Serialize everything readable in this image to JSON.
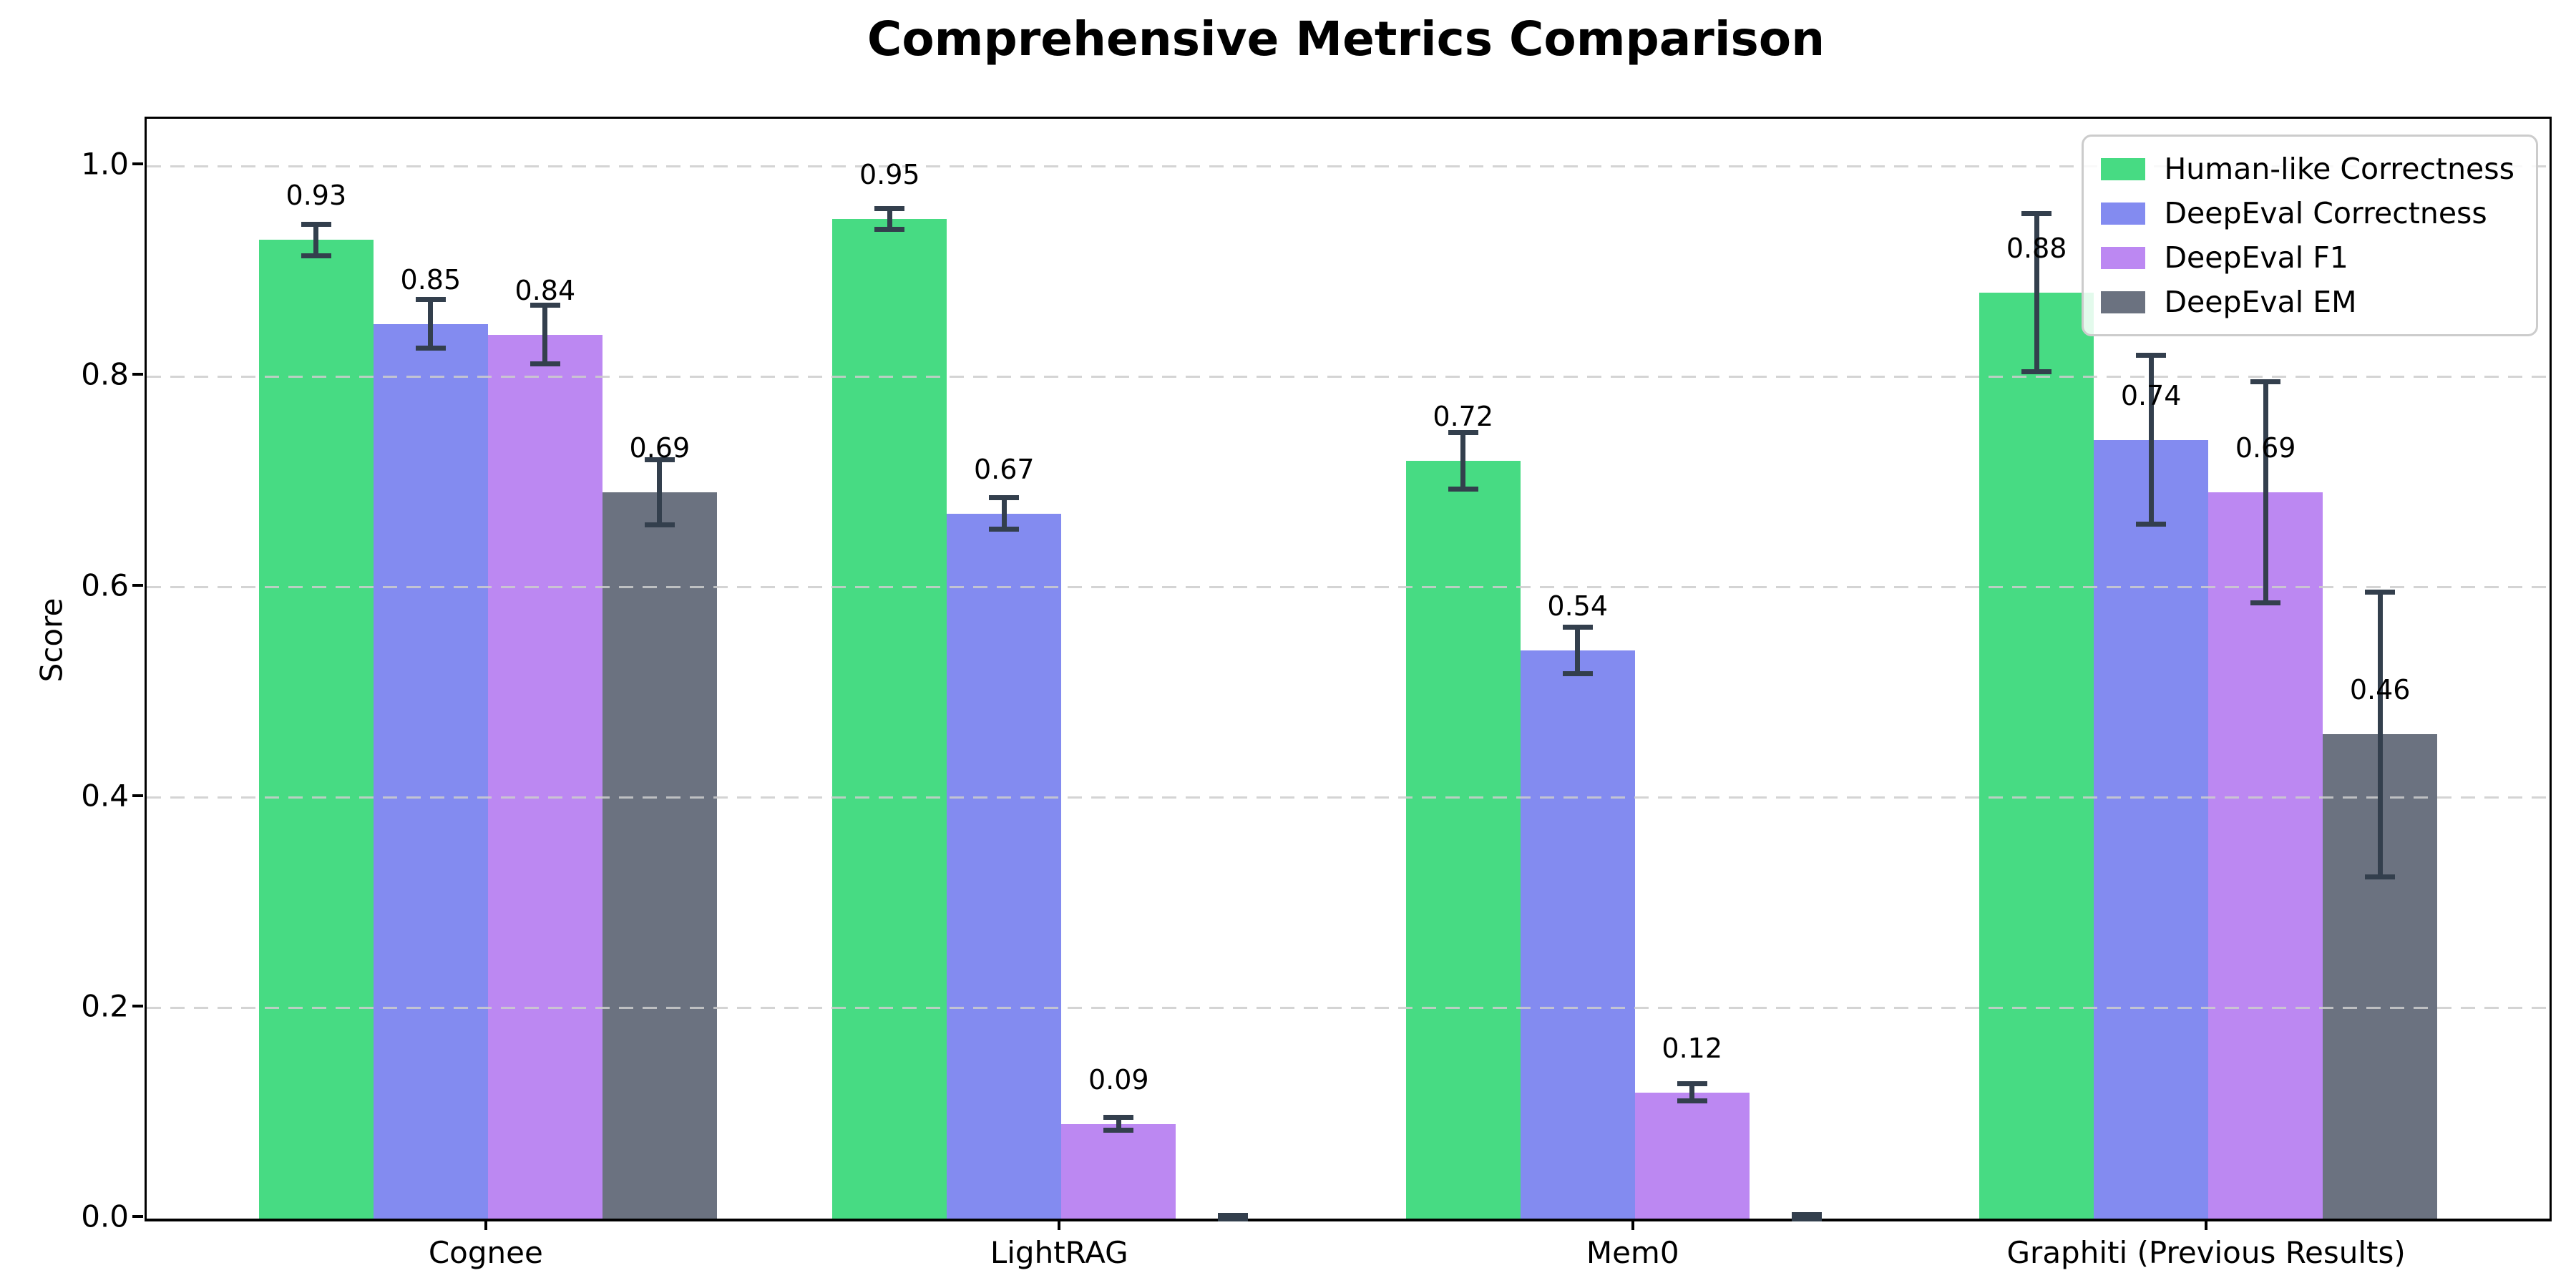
{
  "chart_data": {
    "type": "bar",
    "title": "Comprehensive Metrics Comparison",
    "xlabel": "",
    "ylabel": "Score",
    "categories": [
      "Cognee",
      "LightRAG",
      "Mem0",
      "Graphiti (Previous Results)"
    ],
    "series": [
      {
        "name": "Human-like Correctness",
        "color": "#47db83",
        "values": [
          0.93,
          0.95,
          0.72,
          0.88
        ],
        "errors": [
          0.015,
          0.01,
          0.027,
          0.075
        ],
        "labels": [
          "0.93",
          "0.95",
          "0.72",
          "0.88"
        ]
      },
      {
        "name": "DeepEval Correctness",
        "color": "#838bf0",
        "values": [
          0.85,
          0.67,
          0.54,
          0.74
        ],
        "errors": [
          0.023,
          0.015,
          0.022,
          0.08
        ],
        "labels": [
          "0.85",
          "0.67",
          "0.54",
          "0.74"
        ]
      },
      {
        "name": "DeepEval F1",
        "color": "#bc88f2",
        "values": [
          0.84,
          0.09,
          0.12,
          0.69
        ],
        "errors": [
          0.028,
          0.006,
          0.008,
          0.105
        ],
        "labels": [
          "0.84",
          "0.09",
          "0.12",
          "0.69"
        ]
      },
      {
        "name": "DeepEval EM",
        "color": "#6b7280",
        "values": [
          0.69,
          0.0,
          0.0,
          0.46
        ],
        "errors": [
          0.031,
          0.003,
          0.004,
          0.135
        ],
        "labels": [
          "0.69",
          "",
          "",
          "0.46"
        ]
      }
    ],
    "yticks": [
      "0.0",
      "0.2",
      "0.4",
      "0.6",
      "0.8",
      "1.0"
    ],
    "ytick_values": [
      0.0,
      0.2,
      0.4,
      0.6,
      0.8,
      1.0
    ],
    "ylim": [
      0,
      1.045
    ],
    "grid": {
      "axis": "y",
      "style": "dashed",
      "color": "#cdcdcd",
      "over_bars": true
    },
    "legend_position": "upper-right",
    "error_bar_color": "#333f4d",
    "axis_color": "#000000",
    "background": "#ffffff"
  }
}
